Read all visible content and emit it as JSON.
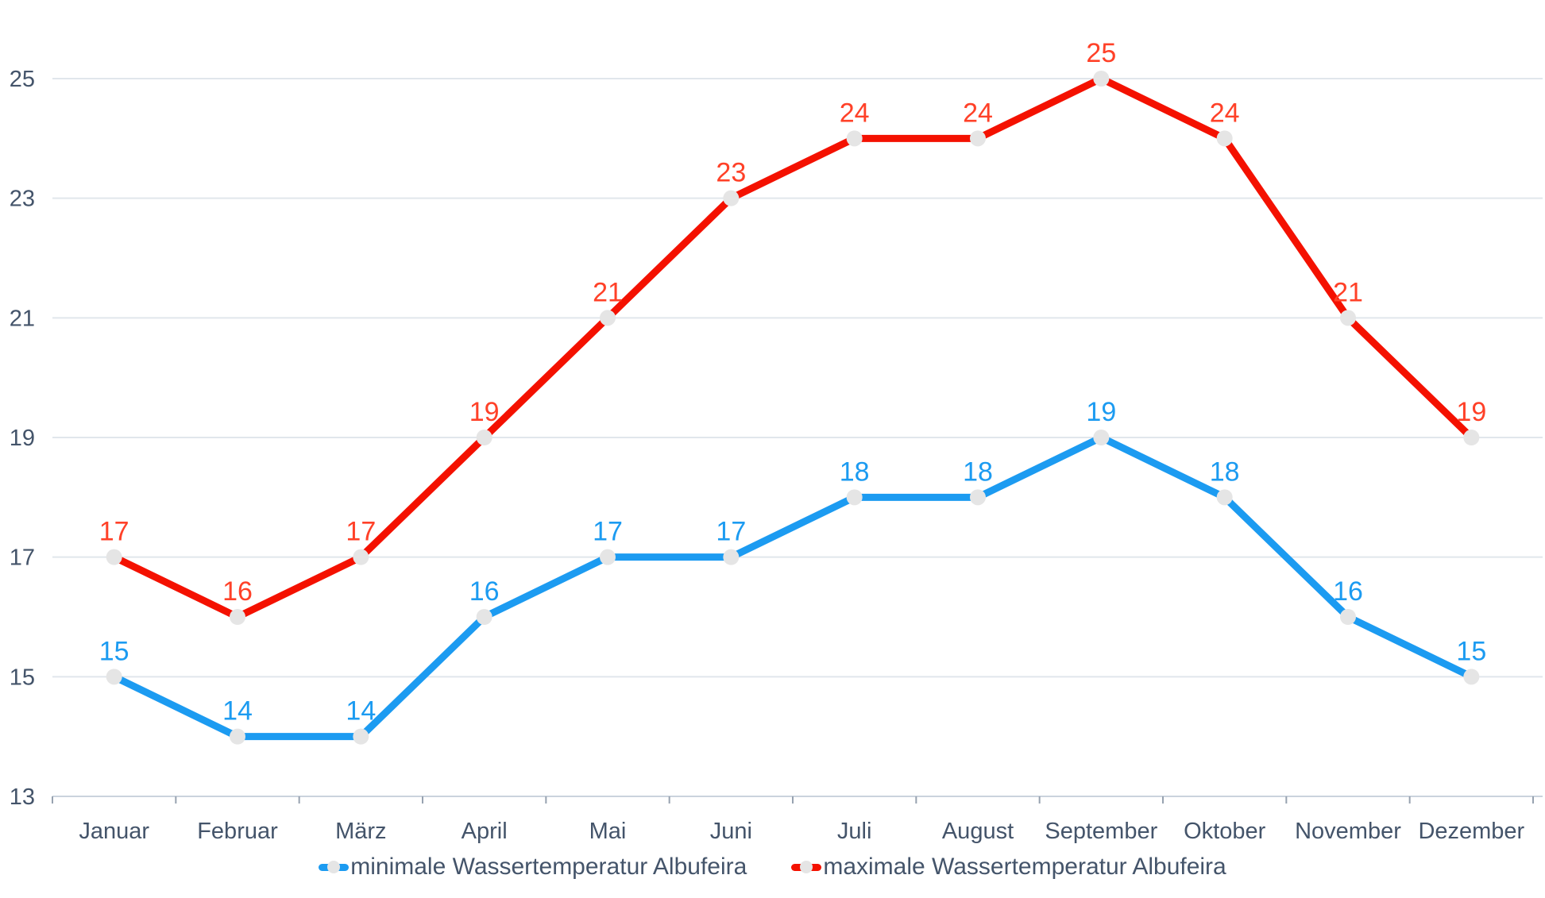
{
  "chart_data": {
    "type": "line",
    "categories": [
      "Januar",
      "Februar",
      "März",
      "April",
      "Mai",
      "Juni",
      "Juli",
      "August",
      "September",
      "Oktober",
      "November",
      "Dezember"
    ],
    "series": [
      {
        "key": "min-temperature",
        "name": "minimale Wassertemperatur Albufeira",
        "values": [
          15,
          14,
          14,
          16,
          17,
          17,
          18,
          18,
          19,
          18,
          16,
          15
        ],
        "color": "#1C9BF1",
        "label_color": "#1C9BF1"
      },
      {
        "key": "max-temperature",
        "name": "maximale Wassertemperatur Albufeira",
        "values": [
          17,
          16,
          17,
          19,
          21,
          23,
          24,
          24,
          25,
          24,
          21,
          19
        ],
        "color": "#F41100",
        "label_color": "#FF4128"
      }
    ],
    "ylim": [
      13,
      25
    ],
    "yticks": [
      13,
      15,
      17,
      19,
      21,
      23,
      25
    ],
    "grid": true,
    "legend_position": "bottom",
    "colors": {
      "axis_text": "#44546A",
      "gridline": "#E1E6EC",
      "axis_line": "#CBD3DD",
      "tick": "#97A2B0",
      "marker_fill": "#E5E5E5"
    }
  }
}
